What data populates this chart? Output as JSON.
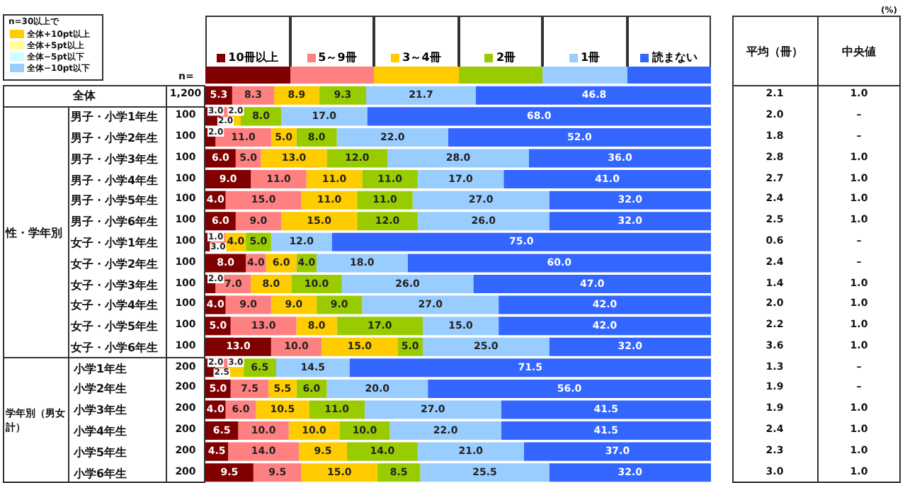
{
  "chart_data": {
    "type": "bar",
    "orientation": "horizontal",
    "stacked": true,
    "legend": "top",
    "tick_labels": "y",
    "data_labels": true,
    "xlim": [
      0,
      100
    ],
    "categories": [
      "全体",
      "男子・小学1年生",
      "男子・小学2年生",
      "男子・小学3年生",
      "男子・小学4年生",
      "男子・小学5年生",
      "男子・小学6年生",
      "女子・小学1年生",
      "女子・小学2年生",
      "女子・小学3年生",
      "女子・小学4年生",
      "女子・小学5年生",
      "女子・小学6年生",
      "小学1年生",
      "小学2年生",
      "小学3年生",
      "小学4年生",
      "小学5年生",
      "小学6年生"
    ],
    "series": [
      {
        "name": "10冊以上",
        "color": "#800000",
        "values": [
          5.3,
          3.0,
          2.0,
          6.0,
          9.0,
          4.0,
          6.0,
          1.0,
          8.0,
          2.0,
          4.0,
          5.0,
          13.0,
          2.0,
          5.0,
          4.0,
          6.5,
          4.5,
          9.5
        ],
        "value_labels": [
          "5.3",
          "3.0",
          "2.0",
          "6.0",
          "9.0",
          "4.0",
          "6.0",
          "1.0",
          "8.0",
          "2.0",
          "4.0",
          "5.0",
          "13.0",
          "2.0",
          "5.0",
          "4.0",
          "6.5",
          "4.5",
          "9.5"
        ]
      },
      {
        "name": "5～9冊",
        "color": "#ff8080",
        "values": [
          8.3,
          2.0,
          11.0,
          5.0,
          11.0,
          15.0,
          9.0,
          3.0,
          4.0,
          7.0,
          9.0,
          13.0,
          10.0,
          2.5,
          7.5,
          6.0,
          10.0,
          14.0,
          9.5
        ],
        "value_labels": [
          "8.3",
          "2.0",
          "11.0",
          "5.0",
          "11.0",
          "15.0",
          "9.0",
          "3.0",
          "4.0",
          "7.0",
          "9.0",
          "13.0",
          "10.0",
          "2.5",
          "7.5",
          "6.0",
          "10.0",
          "14.0",
          "9.5"
        ]
      },
      {
        "name": "3～4冊",
        "color": "#ffcc00",
        "values": [
          8.9,
          2.0,
          5.0,
          13.0,
          11.0,
          11.0,
          15.0,
          4.0,
          6.0,
          8.0,
          9.0,
          8.0,
          15.0,
          3.0,
          5.5,
          10.5,
          10.0,
          9.5,
          15.0
        ],
        "value_labels": [
          "8.9",
          "2.0",
          "5.0",
          "13.0",
          "11.0",
          "11.0",
          "15.0",
          "4.0",
          "6.0",
          "8.0",
          "9.0",
          "8.0",
          "15.0",
          "3.0",
          "5.5",
          "10.5",
          "10.0",
          "9.5",
          "15.0"
        ]
      },
      {
        "name": "2冊",
        "color": "#99cc00",
        "values": [
          9.3,
          8.0,
          8.0,
          12.0,
          11.0,
          11.0,
          12.0,
          5.0,
          4.0,
          10.0,
          9.0,
          17.0,
          5.0,
          6.5,
          6.0,
          11.0,
          10.0,
          14.0,
          8.5
        ],
        "value_labels": [
          "9.3",
          "8.0",
          "8.0",
          "12.0",
          "11.0",
          "11.0",
          "12.0",
          "5.0",
          "4.0",
          "10.0",
          "9.0",
          "17.0",
          "5.0",
          "6.5",
          "6.0",
          "11.0",
          "10.0",
          "14.0",
          "8.5"
        ]
      },
      {
        "name": "1冊",
        "color": "#99ccff",
        "values": [
          21.7,
          17.0,
          22.0,
          28.0,
          17.0,
          27.0,
          26.0,
          12.0,
          18.0,
          26.0,
          27.0,
          15.0,
          25.0,
          14.5,
          20.0,
          27.0,
          22.0,
          21.0,
          25.5
        ],
        "value_labels": [
          "21.7",
          "17.0",
          "22.0",
          "28.0",
          "17.0",
          "27.0",
          "26.0",
          "12.0",
          "18.0",
          "26.0",
          "27.0",
          "15.0",
          "25.0",
          "14.5",
          "20.0",
          "27.0",
          "22.0",
          "21.0",
          "25.5"
        ]
      },
      {
        "name": "読まない",
        "color": "#3366ff",
        "values": [
          46.8,
          68.0,
          52.0,
          36.0,
          41.0,
          32.0,
          32.0,
          75.0,
          60.0,
          47.0,
          42.0,
          42.0,
          32.0,
          71.5,
          56.0,
          41.5,
          41.5,
          37.0,
          32.0
        ],
        "value_labels": [
          "46.8",
          "68.0",
          "52.0",
          "36.0",
          "41.0",
          "32.0",
          "32.0",
          "75.0",
          "60.0",
          "47.0",
          "42.0",
          "42.0",
          "32.0",
          "71.5",
          "56.0",
          "41.5",
          "41.5",
          "37.0",
          "32.0"
        ]
      }
    ],
    "annotations": [
      "(%)",
      "n=",
      "平均（冊）",
      "中央値",
      "n=30以上で",
      "全体+10pt以上",
      "全体+5pt以上",
      "全体−5pt以下",
      "全体−10pt以下",
      "性・学年別",
      "学年別（男女計）",
      "1,200",
      "100",
      "100",
      "100",
      "100",
      "100",
      "100",
      "100",
      "100",
      "100",
      "100",
      "100",
      "100",
      "200",
      "200",
      "200",
      "200",
      "200",
      "200",
      "2.1",
      "2.0",
      "1.8",
      "2.8",
      "2.7",
      "2.4",
      "2.5",
      "0.6",
      "2.4",
      "1.4",
      "2.0",
      "2.2",
      "3.6",
      "1.3",
      "1.9",
      "1.9",
      "2.4",
      "2.3",
      "3.0",
      "1.0",
      "–",
      "–",
      "1.0",
      "1.0",
      "1.0",
      "1.0",
      "–",
      "–",
      "1.0",
      "1.0",
      "1.0",
      "1.0",
      "–",
      "–",
      "1.0",
      "1.0",
      "1.0",
      "1.0"
    ]
  }
}
